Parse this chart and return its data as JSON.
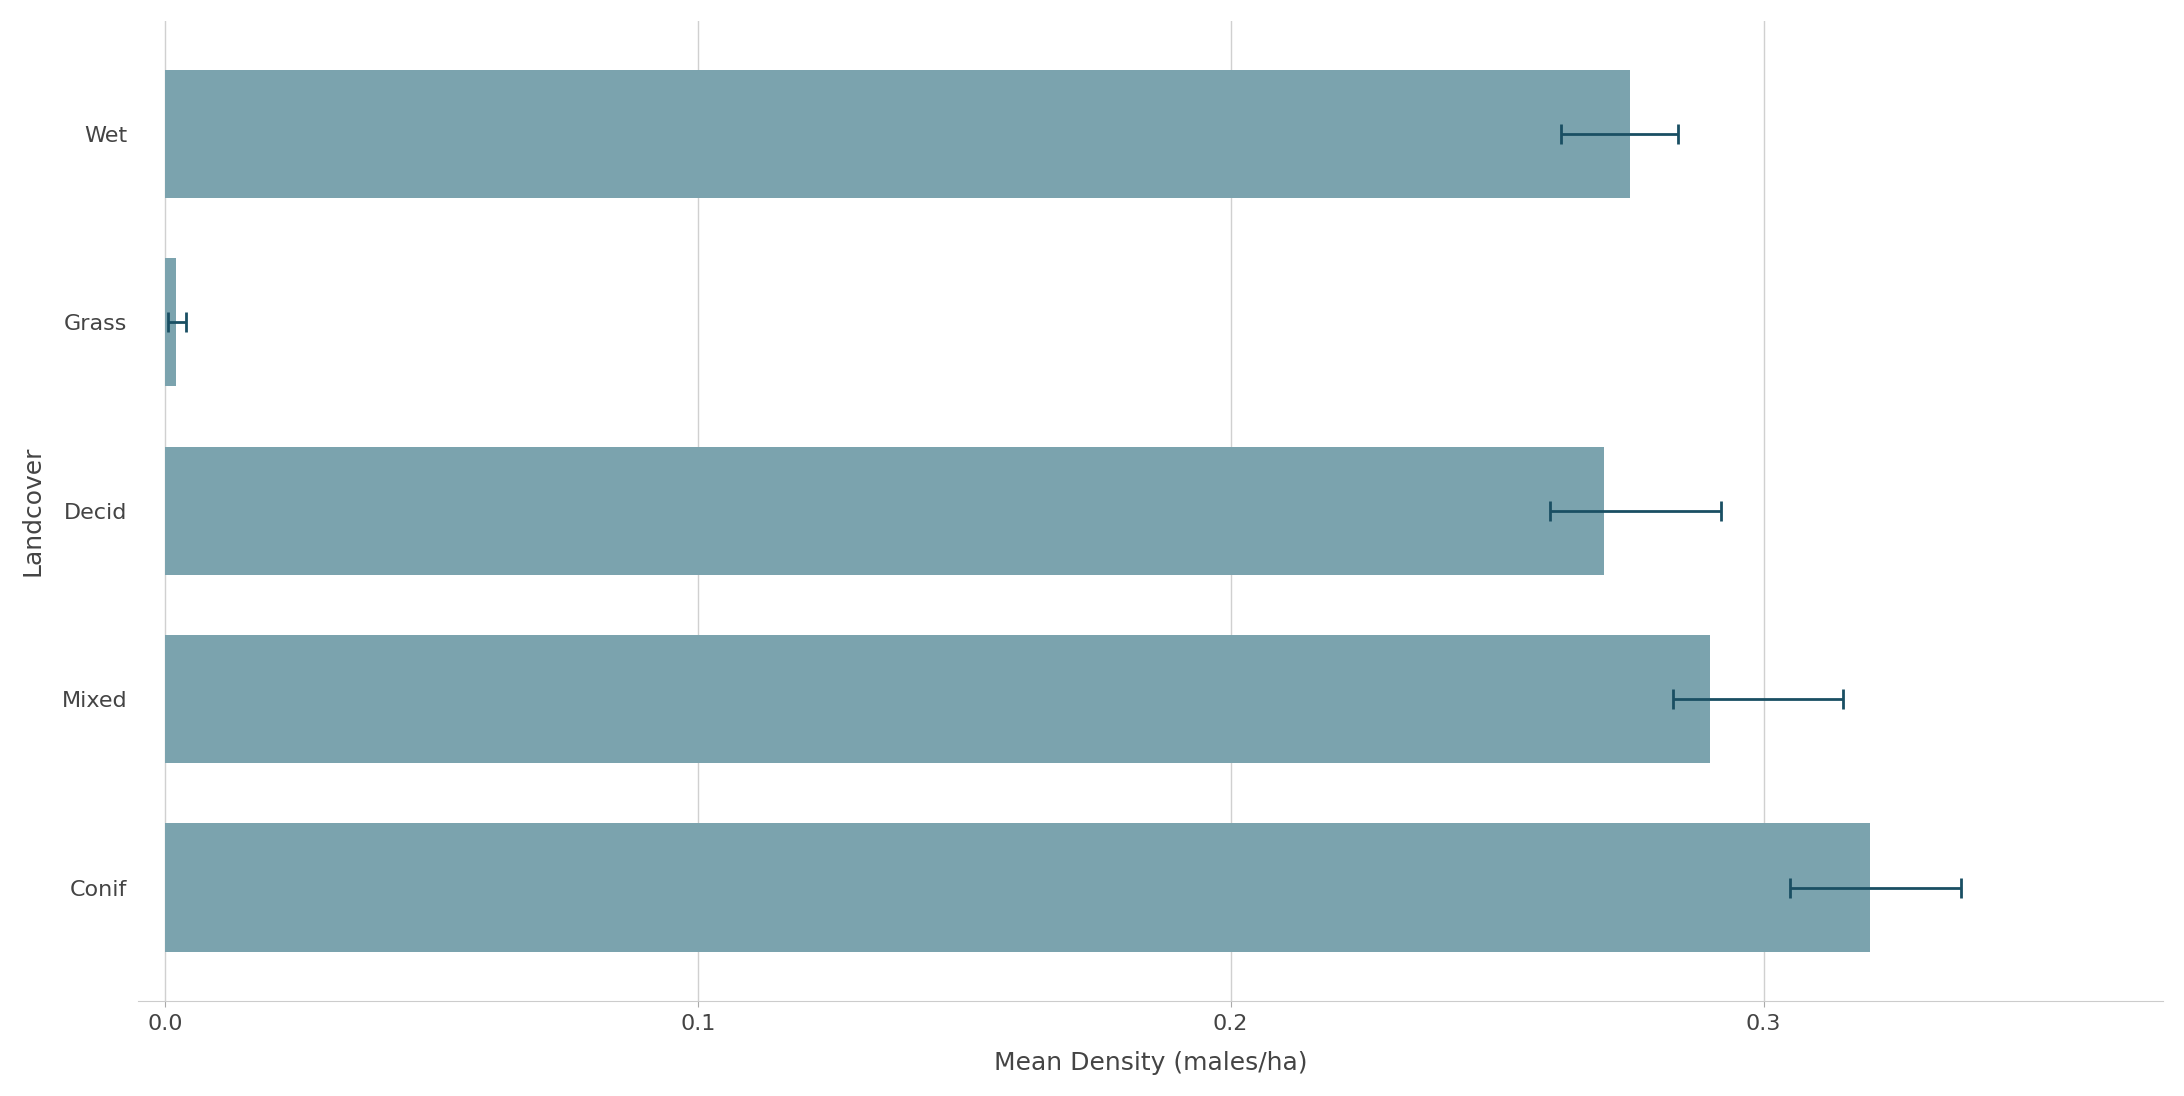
{
  "categories": [
    "Conif",
    "Mixed",
    "Decid",
    "Grass",
    "Wet"
  ],
  "values": [
    0.32,
    0.29,
    0.27,
    0.002,
    0.275
  ],
  "error_lower": [
    0.305,
    0.283,
    0.26,
    0.0005,
    0.262
  ],
  "error_upper": [
    0.337,
    0.315,
    0.292,
    0.004,
    0.284
  ],
  "bar_color": "#7ba3ae",
  "error_color": "#1a4f63",
  "background_color": "#ffffff",
  "grid_color": "#d0d0d0",
  "xlabel": "Mean Density (males/ha)",
  "ylabel": "Landcover",
  "xlim": [
    -0.005,
    0.375
  ],
  "xticks": [
    0.0,
    0.1,
    0.2,
    0.3
  ],
  "xtick_labels": [
    "0.0",
    "0.1",
    "0.2",
    "0.3"
  ],
  "label_fontsize": 18,
  "tick_fontsize": 16,
  "bar_height": 0.68
}
